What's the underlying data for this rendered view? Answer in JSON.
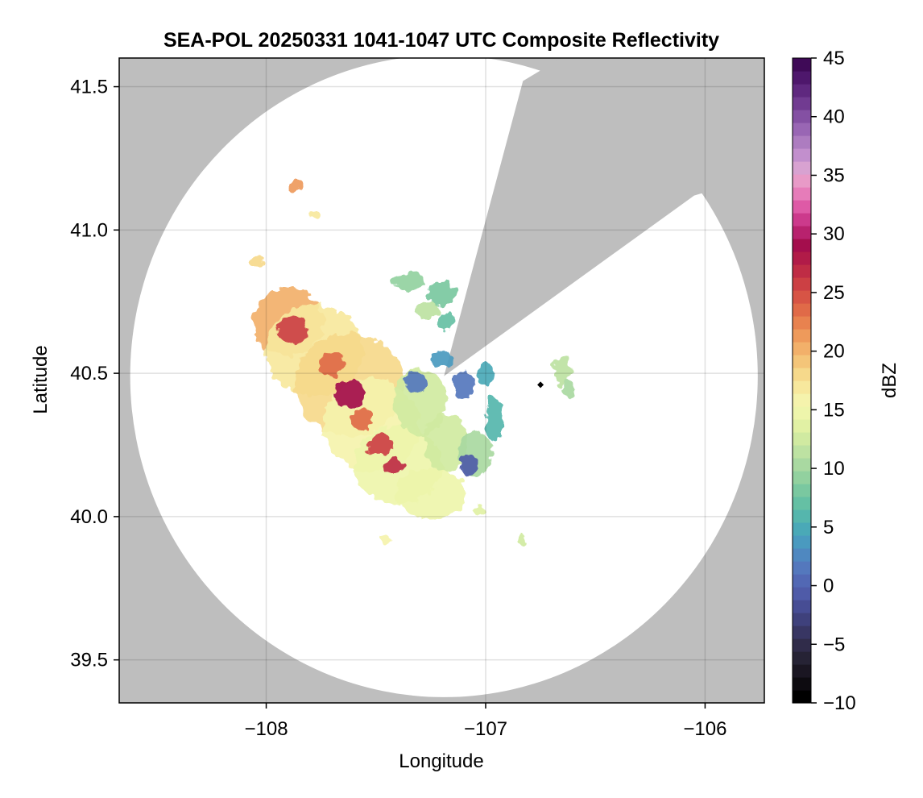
{
  "chart_data": {
    "type": "heatmap",
    "title": "SEA-POL 20250331 1041-1047 UTC Composite Reflectivity",
    "xlabel": "Longitude",
    "ylabel": "Latitude",
    "xlim": [
      -108.67,
      -105.73
    ],
    "ylim": [
      39.35,
      41.6
    ],
    "xticks": [
      -108,
      -107,
      -106
    ],
    "xtick_labels": [
      "−108",
      "−107",
      "−106"
    ],
    "yticks": [
      39.5,
      40.0,
      40.5,
      41.0,
      41.5
    ],
    "ytick_labels": [
      "39.5",
      "40.0",
      "40.5",
      "41.0",
      "41.5"
    ],
    "grid": true,
    "background_color": "#bebebe",
    "radar": {
      "center": [
        -107.19,
        40.49
      ],
      "range_deg_lat": 1.12,
      "range_deg_lon": 1.43,
      "blocked_sectors": [
        {
          "from_lon_lat": [
            -106.83,
            41.52
          ],
          "to_lon_lat": [
            -106.05,
            41.12
          ]
        }
      ]
    },
    "marker": {
      "lon": -106.75,
      "lat": 40.46,
      "shape": "diamond",
      "color": "#000000"
    },
    "colorbar": {
      "label": "dBZ",
      "min": -10,
      "max": 45,
      "ticks": [
        -10,
        -5,
        0,
        5,
        10,
        15,
        20,
        25,
        30,
        35,
        40,
        45
      ],
      "tick_labels": [
        "−10",
        "−5",
        "0",
        "5",
        "10",
        "15",
        "20",
        "25",
        "30",
        "35",
        "40",
        "45"
      ],
      "colors": [
        "#000000",
        "#0d0b10",
        "#1a1622",
        "#262335",
        "#302c4a",
        "#383663",
        "#3f417c",
        "#474d94",
        "#4f5ba8",
        "#5268b4",
        "#5478bd",
        "#4f88c0",
        "#4a9abf",
        "#4aa9b7",
        "#55b6ad",
        "#65c0a4",
        "#7ac8a0",
        "#92d19f",
        "#a9d9a1",
        "#bde2a2",
        "#d0eaa1",
        "#e1f1a4",
        "#eef5ab",
        "#f5f3ac",
        "#f7e89d",
        "#f6d98b",
        "#f4c579",
        "#f2b06a",
        "#ee9a5b",
        "#e8824f",
        "#e06a48",
        "#d75445",
        "#cc4044",
        "#bf2c45",
        "#b11b48",
        "#a40e4d",
        "#b8226e",
        "#cc3a8c",
        "#de5aa6",
        "#e67cb9",
        "#e89ac7",
        "#d8a2d1",
        "#c28fcd",
        "#ad7cc0",
        "#9966b4",
        "#8450a3",
        "#713b91",
        "#5f287f",
        "#4e176c",
        "#3f0a57"
      ]
    },
    "echoes": [
      {
        "name": "main-band",
        "cells": [
          {
            "lon": -107.9,
            "lat": 40.68,
            "rx": 0.16,
            "ry": 0.12,
            "dbz": 20
          },
          {
            "lon": -107.78,
            "lat": 40.58,
            "rx": 0.22,
            "ry": 0.16,
            "dbz": 17
          },
          {
            "lon": -107.62,
            "lat": 40.46,
            "rx": 0.25,
            "ry": 0.18,
            "dbz": 18
          },
          {
            "lon": -107.52,
            "lat": 40.32,
            "rx": 0.22,
            "ry": 0.16,
            "dbz": 16
          },
          {
            "lon": -107.4,
            "lat": 40.18,
            "rx": 0.2,
            "ry": 0.14,
            "dbz": 15
          },
          {
            "lon": -107.25,
            "lat": 40.08,
            "rx": 0.16,
            "ry": 0.09,
            "dbz": 15
          },
          {
            "lon": -107.3,
            "lat": 40.4,
            "rx": 0.12,
            "ry": 0.12,
            "dbz": 13
          },
          {
            "lon": -107.18,
            "lat": 40.26,
            "rx": 0.1,
            "ry": 0.1,
            "dbz": 12
          },
          {
            "lon": -107.05,
            "lat": 40.22,
            "rx": 0.08,
            "ry": 0.08,
            "dbz": 10
          }
        ]
      },
      {
        "name": "core",
        "cells": [
          {
            "lon": -107.88,
            "lat": 40.65,
            "rx": 0.07,
            "ry": 0.05,
            "dbz": 26
          },
          {
            "lon": -107.62,
            "lat": 40.43,
            "rx": 0.07,
            "ry": 0.05,
            "dbz": 29
          },
          {
            "lon": -107.7,
            "lat": 40.53,
            "rx": 0.06,
            "ry": 0.04,
            "dbz": 24
          },
          {
            "lon": -107.48,
            "lat": 40.25,
            "rx": 0.06,
            "ry": 0.04,
            "dbz": 26
          },
          {
            "lon": -107.42,
            "lat": 40.18,
            "rx": 0.05,
            "ry": 0.03,
            "dbz": 27
          },
          {
            "lon": -107.56,
            "lat": 40.34,
            "rx": 0.05,
            "ry": 0.04,
            "dbz": 23
          }
        ]
      },
      {
        "name": "weak-ring",
        "cells": [
          {
            "lon": -107.32,
            "lat": 40.47,
            "rx": 0.05,
            "ry": 0.04,
            "dbz": 2
          },
          {
            "lon": -107.1,
            "lat": 40.46,
            "rx": 0.05,
            "ry": 0.05,
            "dbz": 1
          },
          {
            "lon": -107.08,
            "lat": 40.18,
            "rx": 0.04,
            "ry": 0.04,
            "dbz": -1
          },
          {
            "lon": -107.0,
            "lat": 40.5,
            "rx": 0.04,
            "ry": 0.04,
            "dbz": 5
          },
          {
            "lon": -107.2,
            "lat": 40.55,
            "rx": 0.05,
            "ry": 0.03,
            "dbz": 4
          }
        ]
      },
      {
        "name": "north-fringe",
        "cells": [
          {
            "lon": -107.35,
            "lat": 40.82,
            "rx": 0.08,
            "ry": 0.03,
            "dbz": 9
          },
          {
            "lon": -107.2,
            "lat": 40.78,
            "rx": 0.07,
            "ry": 0.04,
            "dbz": 8
          },
          {
            "lon": -107.26,
            "lat": 40.72,
            "rx": 0.06,
            "ry": 0.03,
            "dbz": 11
          },
          {
            "lon": -107.18,
            "lat": 40.68,
            "rx": 0.04,
            "ry": 0.03,
            "dbz": 7
          }
        ]
      },
      {
        "name": "east-cells",
        "cells": [
          {
            "lon": -106.65,
            "lat": 40.51,
            "rx": 0.04,
            "ry": 0.05,
            "dbz": 11
          },
          {
            "lon": -106.62,
            "lat": 40.44,
            "rx": 0.03,
            "ry": 0.03,
            "dbz": 10
          },
          {
            "lon": -106.96,
            "lat": 40.34,
            "rx": 0.04,
            "ry": 0.08,
            "dbz": 6
          }
        ]
      },
      {
        "name": "isolated",
        "cells": [
          {
            "lon": -107.86,
            "lat": 41.16,
            "rx": 0.03,
            "ry": 0.02,
            "dbz": 21
          },
          {
            "lon": -107.78,
            "lat": 41.05,
            "rx": 0.02,
            "ry": 0.02,
            "dbz": 17
          },
          {
            "lon": -108.04,
            "lat": 40.89,
            "rx": 0.03,
            "ry": 0.02,
            "dbz": 18
          },
          {
            "lon": -107.46,
            "lat": 39.92,
            "rx": 0.03,
            "ry": 0.02,
            "dbz": 16
          },
          {
            "lon": -107.03,
            "lat": 40.02,
            "rx": 0.03,
            "ry": 0.02,
            "dbz": 14
          },
          {
            "lon": -106.83,
            "lat": 39.92,
            "rx": 0.02,
            "ry": 0.02,
            "dbz": 13
          }
        ]
      }
    ]
  }
}
